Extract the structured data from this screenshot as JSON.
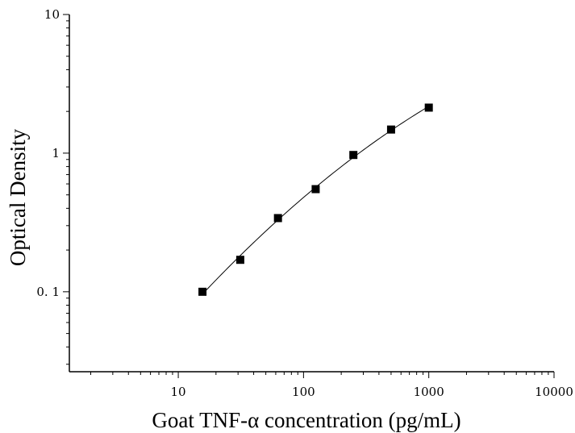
{
  "chart_data": {
    "type": "scatter",
    "title": "",
    "xlabel": "Goat TNF-α concentration (pg/mL)",
    "ylabel": "Optical Density",
    "x_scale": "log",
    "y_scale": "log",
    "xlim": [
      1.35,
      10000
    ],
    "ylim": [
      0.0265,
      10
    ],
    "x_ticks": [
      10,
      100,
      1000,
      10000
    ],
    "x_tick_labels": [
      "10",
      "100",
      "1000",
      "10000"
    ],
    "y_ticks": [
      0.1,
      1,
      10
    ],
    "y_tick_labels": [
      "0. 1",
      "1",
      "10"
    ],
    "grid": false,
    "series": [
      {
        "x": [
          15.6,
          31.25,
          62.5,
          125,
          250,
          500,
          1000
        ],
        "y": [
          0.1,
          0.17,
          0.34,
          0.55,
          0.97,
          1.48,
          2.13
        ],
        "marker": "square",
        "color": "#000000",
        "fit_line": true
      }
    ]
  }
}
